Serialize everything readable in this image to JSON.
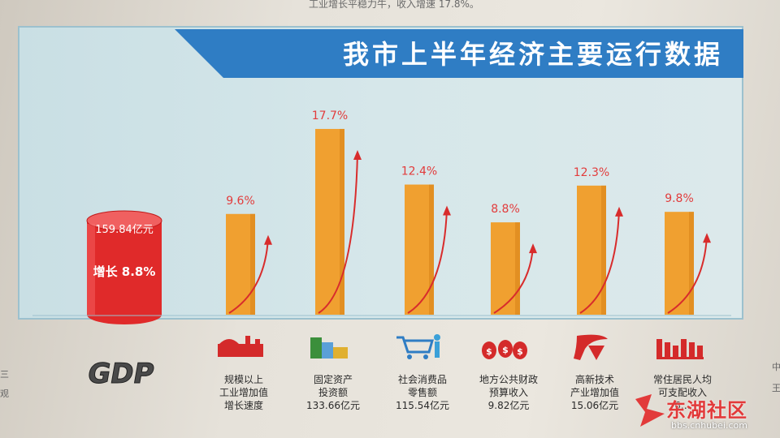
{
  "page_text": {
    "top_snippet": "工业增长平稳力牛，收入增速 17.8%。",
    "side_left": [
      "三",
      "观"
    ],
    "side_right": [
      "中",
      "王"
    ]
  },
  "watermark": {
    "brand": "东湖社区",
    "url": "bbs.cnhubei.com"
  },
  "colors": {
    "bar": "#f0a030",
    "bar_side": "#d98419",
    "value_label": "#e23c3c",
    "arrow": "#d82c2c",
    "cylinder": "#e02a2a",
    "banner": "#2f7dc4",
    "banner_text": "#ffffff"
  },
  "chart_data": {
    "type": "bar",
    "title": "我市上半年经济主要运行数据",
    "gdp": {
      "icon": "gdp-3d-text-icon",
      "label": "GDP",
      "amount_label": "159.84亿元",
      "growth_label": "增长 8.8%",
      "value": 8.8
    },
    "categories": [
      "规模以上工业增加值增长速度",
      "固定资产投资额",
      "社会消费品零售额",
      "地方公共财政预算收入",
      "高新技术产业增加值",
      "常住居民人均可支配收入"
    ],
    "values": [
      9.6,
      17.7,
      12.4,
      8.8,
      12.3,
      9.8
    ],
    "value_labels": [
      "9.6%",
      "17.7%",
      "12.4%",
      "8.8%",
      "12.3%",
      "9.8%"
    ],
    "category_lines": [
      [
        "规模以上",
        "工业增加值",
        "增长速度"
      ],
      [
        "固定资产",
        "投资额",
        "133.66亿元"
      ],
      [
        "社会消费品",
        "零售额",
        "115.54亿元"
      ],
      [
        "地方公共财政",
        "预算收入",
        "9.82亿元"
      ],
      [
        "高新技术",
        "产业增加值",
        "15.06亿元"
      ],
      [
        "常住居民人均",
        "可支配收入",
        "6…"
      ]
    ],
    "icons": [
      "factory-icon",
      "buildings-icon",
      "shopping-cart-icon",
      "money-bags-icon",
      "high-tech-logo-icon",
      "city-skyline-icon"
    ],
    "ylim": [
      0,
      20
    ],
    "grid": false,
    "legend": "none"
  }
}
